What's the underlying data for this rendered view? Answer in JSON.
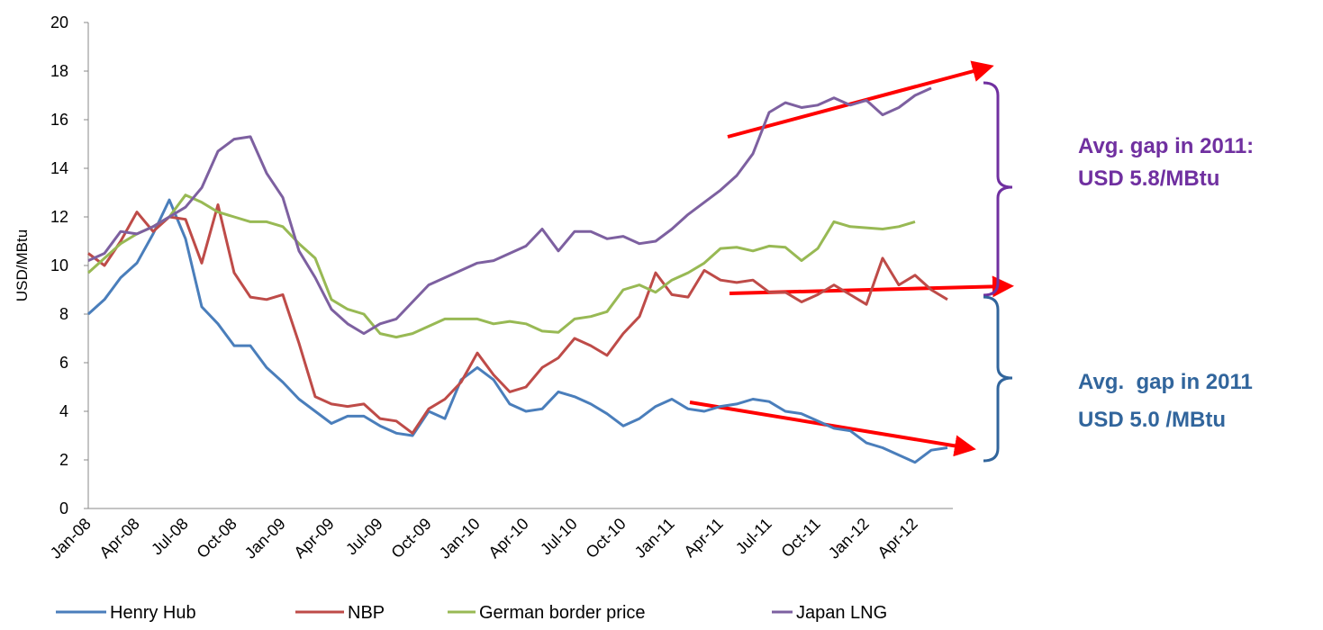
{
  "chart_data": {
    "type": "line",
    "ylabel": "USD/MBtu",
    "categories": [
      "Jan-08",
      null,
      null,
      "Apr-08",
      null,
      null,
      "Jul-08",
      null,
      null,
      "Oct-08",
      null,
      null,
      "Jan-09",
      null,
      null,
      "Apr-09",
      null,
      null,
      "Jul-09",
      null,
      null,
      "Oct-09",
      null,
      null,
      "Jan-10",
      null,
      null,
      "Apr-10",
      null,
      null,
      "Jul-10",
      null,
      null,
      "Oct-10",
      null,
      null,
      "Jan-11",
      null,
      null,
      "Apr-11",
      null,
      null,
      "Jul-11",
      null,
      null,
      "Oct-11",
      null,
      null,
      "Jan-12",
      null,
      null,
      "Apr-12",
      null,
      null
    ],
    "series": [
      {
        "name": "Henry Hub",
        "color": "#4a7ebb",
        "values": [
          8.0,
          8.6,
          9.5,
          10.1,
          11.3,
          12.7,
          11.1,
          8.3,
          7.6,
          6.7,
          6.7,
          5.8,
          5.2,
          4.5,
          4.0,
          3.5,
          3.8,
          3.8,
          3.4,
          3.1,
          3.0,
          4.0,
          3.7,
          5.3,
          5.8,
          5.3,
          4.3,
          4.0,
          4.1,
          4.8,
          4.6,
          4.3,
          3.9,
          3.4,
          3.7,
          4.2,
          4.5,
          4.1,
          4.0,
          4.2,
          4.3,
          4.5,
          4.4,
          4.0,
          3.9,
          3.6,
          3.3,
          3.2,
          2.7,
          2.5,
          2.2,
          1.9,
          2.4,
          2.5
        ]
      },
      {
        "name": "NBP",
        "color": "#be4b48",
        "values": [
          10.5,
          10.0,
          11.0,
          12.2,
          11.4,
          12.0,
          11.9,
          10.1,
          12.5,
          9.7,
          8.7,
          8.6,
          8.8,
          6.8,
          4.6,
          4.3,
          4.2,
          4.3,
          3.7,
          3.6,
          3.1,
          4.1,
          4.5,
          5.2,
          6.4,
          5.5,
          4.8,
          5.0,
          5.8,
          6.2,
          7.0,
          6.7,
          6.3,
          7.2,
          7.9,
          9.7,
          8.8,
          8.7,
          9.8,
          9.4,
          9.3,
          9.4,
          8.9,
          8.9,
          8.5,
          8.8,
          9.2,
          8.8,
          8.4,
          10.3,
          9.2,
          9.6,
          9.0,
          8.6
        ]
      },
      {
        "name": "German border price",
        "color": "#98b954",
        "values": [
          9.7,
          10.3,
          10.9,
          11.3,
          11.6,
          12.0,
          12.9,
          12.6,
          12.2,
          12.0,
          11.8,
          11.8,
          11.6,
          10.9,
          10.3,
          8.6,
          8.2,
          8.0,
          7.2,
          7.05,
          7.2,
          7.5,
          7.8,
          7.8,
          7.8,
          7.6,
          7.7,
          7.6,
          7.3,
          7.25,
          7.8,
          7.9,
          8.1,
          9.0,
          9.2,
          8.9,
          9.4,
          9.7,
          10.1,
          10.7,
          10.75,
          10.6,
          10.8,
          10.75,
          10.2,
          10.7,
          11.8,
          11.6,
          11.55,
          11.5,
          11.6,
          11.8,
          null,
          null
        ]
      },
      {
        "name": "Japan LNG",
        "color": "#7d60a0",
        "values": [
          10.2,
          10.5,
          11.4,
          11.3,
          11.6,
          12.0,
          12.4,
          13.2,
          14.7,
          15.2,
          15.3,
          13.8,
          12.8,
          10.6,
          9.5,
          8.2,
          7.6,
          7.2,
          7.6,
          7.8,
          8.5,
          9.2,
          9.5,
          9.8,
          10.1,
          10.2,
          10.5,
          10.8,
          11.5,
          10.6,
          11.4,
          11.4,
          11.1,
          11.2,
          10.9,
          11.0,
          11.5,
          12.1,
          12.6,
          13.1,
          13.7,
          14.6,
          16.3,
          16.7,
          16.5,
          16.6,
          16.9,
          16.6,
          16.8,
          16.2,
          16.5,
          17.0,
          17.3,
          null
        ]
      }
    ],
    "ylim": [
      0,
      20
    ],
    "yticks": [
      0,
      2,
      4,
      6,
      8,
      10,
      12,
      14,
      16,
      18,
      20
    ],
    "legend": "bottom",
    "annotations": [
      "Avg. gap in 2011:",
      "USD 5.8/MBtu",
      "Avg.  gap in 2011",
      "USD 5.0 /MBtu"
    ]
  }
}
